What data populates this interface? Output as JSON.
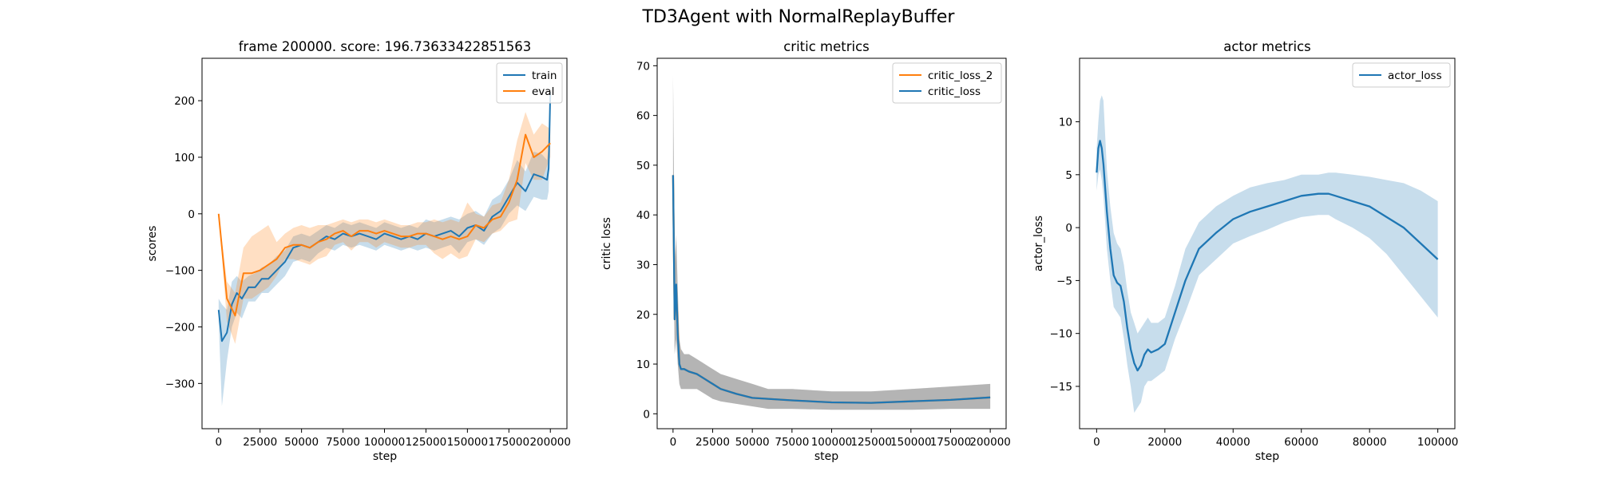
{
  "figure": {
    "suptitle": "TD3Agent with NormalReplayBuffer"
  },
  "colors": {
    "blue": "#1f77b4",
    "orange": "#ff7f0e",
    "blue_band": "#1f77b4",
    "orange_band": "#ff7f0e",
    "gray_band": "#7f7f7f"
  },
  "chart_data": [
    {
      "type": "line",
      "title": "frame 200000. score: 196.73633422851563",
      "xlabel": "step",
      "ylabel": "scores",
      "xlim": [
        -10000,
        210000
      ],
      "ylim": [
        -380,
        275
      ],
      "xticks": [
        0,
        25000,
        50000,
        75000,
        100000,
        125000,
        150000,
        175000,
        200000
      ],
      "xtick_labels": [
        "0",
        "25000",
        "50000",
        "75000",
        "100000",
        "125000",
        "150000",
        "175000",
        "200000"
      ],
      "yticks": [
        -300,
        -200,
        -100,
        0,
        100,
        200
      ],
      "ytick_labels": [
        "−300",
        "−200",
        "−100",
        "0",
        "100",
        "200"
      ],
      "grid": false,
      "legend_position": "top-right",
      "series": [
        {
          "name": "train",
          "color": "#1f77b4",
          "x": [
            0,
            2000,
            5000,
            8000,
            11000,
            14000,
            18000,
            22000,
            26000,
            30000,
            35000,
            40000,
            45000,
            50000,
            55000,
            60000,
            65000,
            70000,
            75000,
            80000,
            85000,
            90000,
            95000,
            100000,
            105000,
            110000,
            115000,
            120000,
            125000,
            130000,
            135000,
            140000,
            145000,
            150000,
            155000,
            160000,
            165000,
            170000,
            175000,
            180000,
            185000,
            190000,
            195000,
            198000,
            199000,
            200000
          ],
          "y": [
            -170,
            -225,
            -210,
            -160,
            -140,
            -150,
            -130,
            -130,
            -115,
            -115,
            -100,
            -85,
            -60,
            -55,
            -60,
            -50,
            -40,
            -45,
            -35,
            -40,
            -35,
            -40,
            -45,
            -35,
            -40,
            -45,
            -40,
            -45,
            -35,
            -40,
            -35,
            -30,
            -40,
            -25,
            -20,
            -30,
            -5,
            5,
            30,
            55,
            40,
            70,
            65,
            60,
            80,
            215
          ],
          "band_upper": [
            -150,
            -160,
            -170,
            -120,
            -110,
            -120,
            -110,
            -105,
            -95,
            -90,
            -75,
            -65,
            -40,
            -35,
            -40,
            -30,
            -20,
            -25,
            -15,
            -20,
            -15,
            -20,
            -25,
            -15,
            -20,
            -25,
            -20,
            -25,
            -10,
            -15,
            -10,
            -5,
            -10,
            0,
            5,
            -5,
            25,
            35,
            60,
            95,
            75,
            110,
            105,
            95,
            120,
            255
          ],
          "band_lower": [
            -190,
            -340,
            -260,
            -200,
            -175,
            -185,
            -155,
            -155,
            -140,
            -140,
            -125,
            -110,
            -85,
            -80,
            -85,
            -70,
            -60,
            -65,
            -55,
            -60,
            -55,
            -60,
            -65,
            -55,
            -60,
            -65,
            -60,
            -65,
            -60,
            -65,
            -60,
            -55,
            -70,
            -50,
            -45,
            -55,
            -35,
            -25,
            0,
            15,
            5,
            30,
            25,
            25,
            40,
            175
          ]
        },
        {
          "name": "eval",
          "color": "#ff7f0e",
          "x": [
            0,
            5000,
            10000,
            15000,
            20000,
            25000,
            30000,
            35000,
            40000,
            45000,
            50000,
            55000,
            60000,
            65000,
            70000,
            75000,
            80000,
            85000,
            90000,
            95000,
            100000,
            105000,
            110000,
            115000,
            120000,
            125000,
            130000,
            135000,
            140000,
            145000,
            150000,
            155000,
            160000,
            165000,
            170000,
            175000,
            180000,
            185000,
            190000,
            195000,
            200000
          ],
          "y": [
            0,
            -150,
            -180,
            -105,
            -105,
            -100,
            -90,
            -80,
            -60,
            -55,
            -55,
            -60,
            -50,
            -45,
            -35,
            -30,
            -40,
            -30,
            -30,
            -35,
            -30,
            -35,
            -40,
            -40,
            -35,
            -35,
            -40,
            -45,
            -40,
            -45,
            -40,
            -20,
            -25,
            -10,
            -5,
            20,
            60,
            140,
            100,
            110,
            125
          ],
          "band_upper": [
            0,
            -120,
            -140,
            -60,
            -40,
            -30,
            -20,
            -50,
            -35,
            -25,
            -20,
            -25,
            -20,
            -20,
            -15,
            -10,
            -15,
            -10,
            -10,
            -15,
            -10,
            -15,
            -20,
            -20,
            -15,
            -15,
            -10,
            -15,
            -10,
            -15,
            20,
            0,
            -5,
            15,
            20,
            60,
            130,
            180,
            140,
            160,
            150
          ],
          "band_lower": [
            0,
            -190,
            -230,
            -150,
            -150,
            -140,
            -130,
            -110,
            -80,
            -80,
            -85,
            -90,
            -80,
            -75,
            -55,
            -50,
            -65,
            -50,
            -50,
            -60,
            -50,
            -55,
            -60,
            -60,
            -55,
            -55,
            -70,
            -80,
            -70,
            -80,
            -75,
            -45,
            -50,
            -35,
            -30,
            -15,
            -10,
            90,
            60,
            60,
            100
          ]
        }
      ]
    },
    {
      "type": "line",
      "title": "critic metrics",
      "xlabel": "step",
      "ylabel": "critic loss",
      "xlim": [
        -10000,
        210000
      ],
      "ylim": [
        -3,
        71.5
      ],
      "xticks": [
        0,
        25000,
        50000,
        75000,
        100000,
        125000,
        150000,
        175000,
        200000
      ],
      "xtick_labels": [
        "0",
        "25000",
        "50000",
        "75000",
        "100000",
        "125000",
        "150000",
        "175000",
        "200000"
      ],
      "yticks": [
        0,
        10,
        20,
        30,
        40,
        50,
        60,
        70
      ],
      "ytick_labels": [
        "0",
        "10",
        "20",
        "30",
        "40",
        "50",
        "60",
        "70"
      ],
      "grid": false,
      "legend_position": "top-right",
      "series": [
        {
          "name": "critic_loss_2",
          "color": "#ff7f0e",
          "x": [
            0,
            1000,
            2000,
            3000,
            4000,
            5000,
            7000,
            10000,
            15000,
            20000,
            25000,
            30000,
            40000,
            50000,
            60000,
            75000,
            100000,
            125000,
            150000,
            175000,
            200000
          ],
          "y": [
            48,
            19,
            25,
            17,
            10,
            9,
            9,
            8.5,
            8,
            7,
            6,
            5,
            4,
            3.2,
            3,
            2.7,
            2.3,
            2.2,
            2.5,
            2.8,
            3.3
          ],
          "band_upper": [
            68,
            30,
            36,
            25,
            15,
            13,
            12,
            12,
            11,
            10,
            9,
            8,
            7,
            6,
            5,
            5,
            4.5,
            4.5,
            5,
            5.5,
            6
          ],
          "band_lower": [
            40,
            12,
            15,
            10,
            6,
            5,
            5,
            5,
            5,
            4,
            3,
            2.5,
            2,
            1.5,
            1,
            1,
            0.8,
            0.8,
            0.8,
            1,
            1
          ]
        },
        {
          "name": "critic_loss",
          "color": "#1f77b4",
          "x": [
            0,
            1000,
            2000,
            3000,
            4000,
            5000,
            7000,
            10000,
            15000,
            20000,
            25000,
            30000,
            40000,
            50000,
            60000,
            75000,
            100000,
            125000,
            150000,
            175000,
            200000
          ],
          "y": [
            48,
            19,
            26,
            16,
            10,
            9,
            9,
            8.5,
            8,
            7,
            6,
            5,
            4,
            3.2,
            3,
            2.7,
            2.3,
            2.2,
            2.5,
            2.8,
            3.3
          ],
          "band_upper": [
            68,
            30,
            36,
            25,
            15,
            13,
            12,
            12,
            11,
            10,
            9,
            8,
            7,
            6,
            5,
            5,
            4.5,
            4.5,
            5,
            5.5,
            6
          ],
          "band_lower": [
            40,
            12,
            15,
            10,
            6,
            5,
            5,
            5,
            5,
            4,
            3,
            2.5,
            2,
            1.5,
            1,
            1,
            0.8,
            0.8,
            0.8,
            1,
            1
          ]
        }
      ]
    },
    {
      "type": "line",
      "title": "actor metrics",
      "xlabel": "step",
      "ylabel": "actor_loss",
      "xlim": [
        -5000,
        105000
      ],
      "ylim": [
        -19,
        16
      ],
      "xticks": [
        0,
        20000,
        40000,
        60000,
        80000,
        100000
      ],
      "xtick_labels": [
        "0",
        "20000",
        "40000",
        "60000",
        "80000",
        "100000"
      ],
      "yticks": [
        -15,
        -10,
        -5,
        0,
        5,
        10
      ],
      "ytick_labels": [
        "−15",
        "−10",
        "−5",
        "0",
        "5",
        "10"
      ],
      "grid": false,
      "legend_position": "top-right",
      "series": [
        {
          "name": "actor_loss",
          "color": "#1f77b4",
          "x": [
            0,
            500,
            1000,
            1500,
            2000,
            3000,
            4000,
            5000,
            6000,
            7000,
            8000,
            9000,
            10000,
            11000,
            12000,
            13000,
            14000,
            15000,
            16000,
            18000,
            20000,
            23000,
            26000,
            30000,
            35000,
            40000,
            45000,
            50000,
            55000,
            60000,
            65000,
            68000,
            70000,
            75000,
            80000,
            85000,
            90000,
            95000,
            100000
          ],
          "y": [
            5.2,
            7.5,
            8.2,
            7.5,
            6.0,
            1.5,
            -2.0,
            -4.5,
            -5.2,
            -5.5,
            -7.0,
            -9.5,
            -11.5,
            -12.8,
            -13.5,
            -13.0,
            -12.0,
            -11.5,
            -11.8,
            -11.5,
            -11.0,
            -8.0,
            -5.0,
            -2.0,
            -0.5,
            0.8,
            1.5,
            2.0,
            2.5,
            3.0,
            3.2,
            3.2,
            3.0,
            2.5,
            2.0,
            1.0,
            0.0,
            -1.5,
            -3.0
          ],
          "band_upper": [
            7.5,
            10.0,
            12.0,
            12.5,
            12.0,
            5.5,
            2.0,
            -0.5,
            -1.5,
            -2.0,
            -3.5,
            -6.0,
            -8.0,
            -9.0,
            -10.0,
            -9.5,
            -9.0,
            -8.5,
            -9.0,
            -9.0,
            -8.5,
            -5.5,
            -2.0,
            0.5,
            2.0,
            3.0,
            3.8,
            4.2,
            4.5,
            5.0,
            5.0,
            5.2,
            5.2,
            5.0,
            4.8,
            4.5,
            4.2,
            3.5,
            2.5
          ],
          "band_lower": [
            3.5,
            5.0,
            5.5,
            4.5,
            3.0,
            -2.0,
            -5.0,
            -7.5,
            -8.0,
            -8.5,
            -10.5,
            -13.0,
            -15.0,
            -17.5,
            -17.0,
            -16.5,
            -15.0,
            -14.5,
            -14.5,
            -14.0,
            -13.5,
            -10.5,
            -8.0,
            -4.5,
            -3.0,
            -1.5,
            -0.8,
            -0.2,
            0.5,
            1.0,
            1.2,
            1.2,
            0.8,
            0.0,
            -1.0,
            -2.5,
            -4.5,
            -6.5,
            -8.5
          ]
        }
      ]
    }
  ]
}
